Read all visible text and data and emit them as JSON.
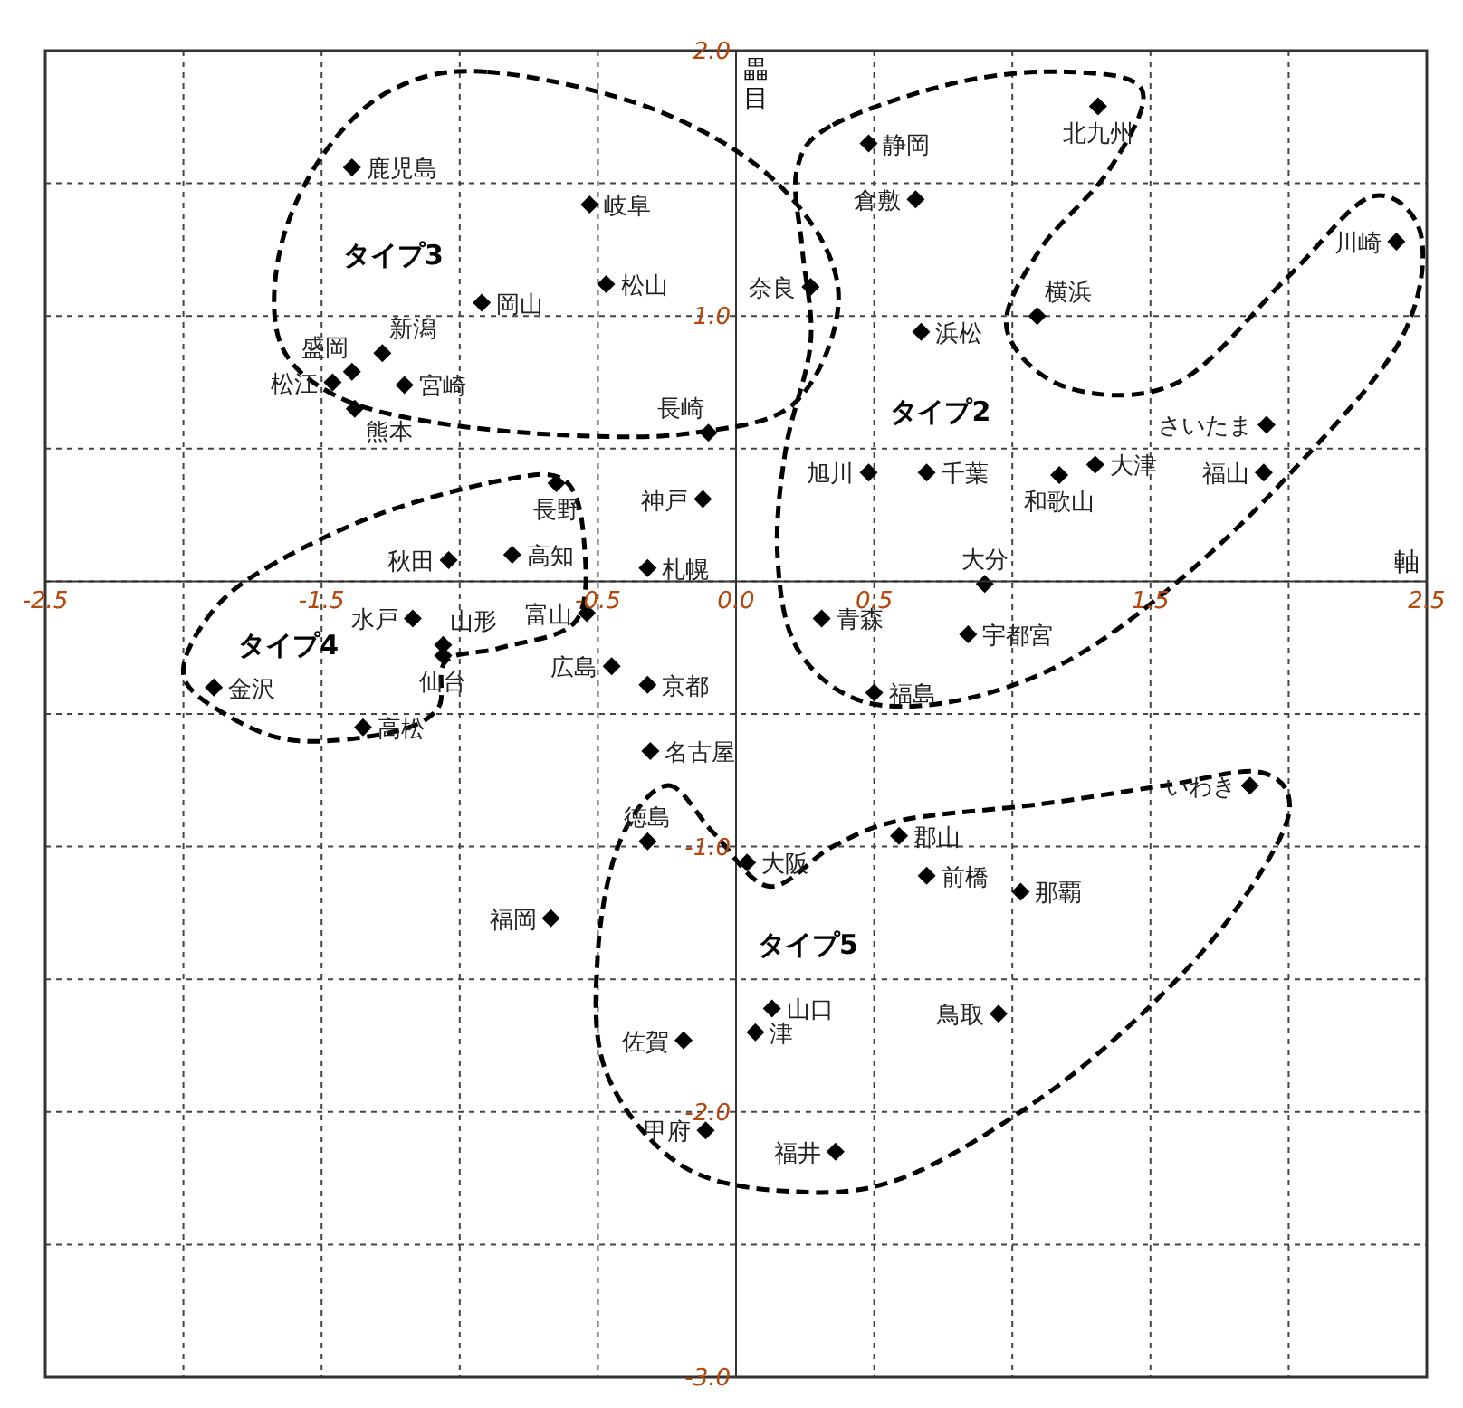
{
  "chart_data": {
    "type": "scatter",
    "xlabel": "軸",
    "ylabel": "畾目",
    "xlim": [
      -2.5,
      2.5
    ],
    "ylim": [
      -3.0,
      2.0
    ],
    "xticks": [
      -2.5,
      {
        "value": -2,
        "label": null
      },
      -1.5,
      {
        "value": -1,
        "label": null
      },
      -0.5,
      {
        "value": 0,
        "label": "0.0"
      },
      0.5,
      {
        "value": 1,
        "label": null
      },
      1.5,
      {
        "value": 2,
        "label": null
      },
      2.5
    ],
    "yticks": [
      {
        "value": 2,
        "label": "2.0"
      },
      {
        "value": 1.5,
        "label": null
      },
      {
        "value": 1,
        "label": "1.0"
      },
      {
        "value": 0.5,
        "label": null
      },
      {
        "value": 0,
        "label": null
      },
      {
        "value": -0.5,
        "label": null
      },
      {
        "value": -1,
        "label": "-1.0"
      },
      {
        "value": -1.5,
        "label": null
      },
      {
        "value": -2,
        "label": "-2.0"
      },
      {
        "value": -2.5,
        "label": null
      },
      {
        "value": -3,
        "label": "-3.0"
      }
    ],
    "grid": true,
    "legend": false,
    "marker": "diamond",
    "series": [
      {
        "color": "#000000",
        "x": [
          -1.39,
          -0.53,
          -0.92,
          -0.47,
          -1.28,
          -1.39,
          -1.46,
          -1.2,
          -1.38,
          -0.1,
          -0.65,
          -0.12,
          -1.04,
          -0.81,
          -0.32,
          0.48,
          0.65,
          1.31,
          2.39,
          0.27,
          1.09,
          0.67,
          1.92,
          0.48,
          0.69,
          1.3,
          1.17,
          1.91,
          0.9,
          -1.17,
          -0.54,
          -1.06,
          -1.06,
          -0.45,
          -0.32,
          -1.89,
          -1.35,
          -0.31,
          -0.32,
          0.31,
          0.84,
          0.5,
          1.86,
          0.59,
          0.04,
          0.69,
          1.03,
          -0.67,
          -0.19,
          -0.11,
          0.13,
          0.07,
          0.95,
          0.36
        ],
        "values": [
          1.56,
          1.42,
          1.05,
          1.12,
          0.86,
          0.79,
          0.75,
          0.74,
          0.65,
          0.56,
          0.37,
          0.31,
          0.08,
          0.1,
          0.05,
          1.65,
          1.44,
          1.79,
          1.28,
          1.11,
          1.0,
          0.94,
          0.59,
          0.41,
          0.41,
          0.44,
          0.4,
          0.41,
          -0.01,
          -0.14,
          -0.12,
          -0.24,
          -0.28,
          -0.32,
          -0.39,
          -0.4,
          -0.55,
          -0.64,
          -0.98,
          -0.14,
          -0.2,
          -0.42,
          -0.77,
          -0.96,
          -1.06,
          -1.11,
          -1.17,
          -1.27,
          -1.73,
          -2.07,
          -1.61,
          -1.7,
          -1.63,
          -2.15
        ]
      }
    ],
    "annotations": [
      {
        "text": "鹿児島",
        "x": -1.39,
        "y": 1.56
      },
      {
        "text": "岐阜",
        "x": -0.53,
        "y": 1.42
      },
      {
        "text": "岡山",
        "x": -0.92,
        "y": 1.05
      },
      {
        "text": "松山",
        "x": -0.47,
        "y": 1.12
      },
      {
        "text": "新潟",
        "x": -1.28,
        "y": 0.86
      },
      {
        "text": "盛岡",
        "x": -1.39,
        "y": 0.79
      },
      {
        "text": "松江",
        "x": -1.46,
        "y": 0.75
      },
      {
        "text": "宮崎",
        "x": -1.2,
        "y": 0.74
      },
      {
        "text": "熊本",
        "x": -1.38,
        "y": 0.65
      },
      {
        "text": "長崎",
        "x": -0.1,
        "y": 0.56
      },
      {
        "text": "長野",
        "x": -0.65,
        "y": 0.37
      },
      {
        "text": "神戸",
        "x": -0.12,
        "y": 0.31
      },
      {
        "text": "秋田",
        "x": -1.04,
        "y": 0.08
      },
      {
        "text": "高知",
        "x": -0.81,
        "y": 0.1
      },
      {
        "text": "札幌",
        "x": -0.32,
        "y": 0.05
      },
      {
        "text": "静岡",
        "x": 0.48,
        "y": 1.65
      },
      {
        "text": "倉敷",
        "x": 0.65,
        "y": 1.44
      },
      {
        "text": "北九州",
        "x": 1.31,
        "y": 1.79
      },
      {
        "text": "川崎",
        "x": 2.39,
        "y": 1.28
      },
      {
        "text": "奈良",
        "x": 0.27,
        "y": 1.11
      },
      {
        "text": "横浜",
        "x": 1.09,
        "y": 1.0
      },
      {
        "text": "浜松",
        "x": 0.67,
        "y": 0.94
      },
      {
        "text": "さいたま",
        "x": 1.92,
        "y": 0.59
      },
      {
        "text": "旭川",
        "x": 0.48,
        "y": 0.41
      },
      {
        "text": "千葉",
        "x": 0.69,
        "y": 0.41
      },
      {
        "text": "大津",
        "x": 1.3,
        "y": 0.44
      },
      {
        "text": "和歌山",
        "x": 1.17,
        "y": 0.4
      },
      {
        "text": "福山",
        "x": 1.91,
        "y": 0.41
      },
      {
        "text": "大分",
        "x": 0.9,
        "y": -0.01
      },
      {
        "text": "水戸",
        "x": -1.17,
        "y": -0.14
      },
      {
        "text": "富山",
        "x": -0.54,
        "y": -0.12
      },
      {
        "text": "山形",
        "x": -1.06,
        "y": -0.24
      },
      {
        "text": "仙台",
        "x": -1.06,
        "y": -0.28
      },
      {
        "text": "広島",
        "x": -0.45,
        "y": -0.32
      },
      {
        "text": "京都",
        "x": -0.32,
        "y": -0.39
      },
      {
        "text": "金沢",
        "x": -1.89,
        "y": -0.4
      },
      {
        "text": "高松",
        "x": -1.35,
        "y": -0.55
      },
      {
        "text": "名古屋",
        "x": -0.31,
        "y": -0.64
      },
      {
        "text": "徳島",
        "x": -0.32,
        "y": -0.98
      },
      {
        "text": "青森",
        "x": 0.31,
        "y": -0.14
      },
      {
        "text": "宇都宮",
        "x": 0.84,
        "y": -0.2
      },
      {
        "text": "福島",
        "x": 0.5,
        "y": -0.42
      },
      {
        "text": "いわき",
        "x": 1.86,
        "y": -0.77
      },
      {
        "text": "郡山",
        "x": 0.59,
        "y": -0.96
      },
      {
        "text": "大阪",
        "x": 0.04,
        "y": -1.06
      },
      {
        "text": "前橋",
        "x": 0.69,
        "y": -1.11
      },
      {
        "text": "那覇",
        "x": 1.03,
        "y": -1.17
      },
      {
        "text": "福岡",
        "x": -0.67,
        "y": -1.27
      },
      {
        "text": "佐賀",
        "x": -0.19,
        "y": -1.73
      },
      {
        "text": "甲府",
        "x": -0.11,
        "y": -2.07
      },
      {
        "text": "山口",
        "x": 0.13,
        "y": -1.61
      },
      {
        "text": "津",
        "x": 0.07,
        "y": -1.7
      },
      {
        "text": "鳥取",
        "x": 0.95,
        "y": -1.63
      },
      {
        "text": "福井",
        "x": 0.36,
        "y": -2.15
      },
      "タイプ3",
      "タイプ2",
      "タイプ4",
      "タイプ5"
    ]
  }
}
